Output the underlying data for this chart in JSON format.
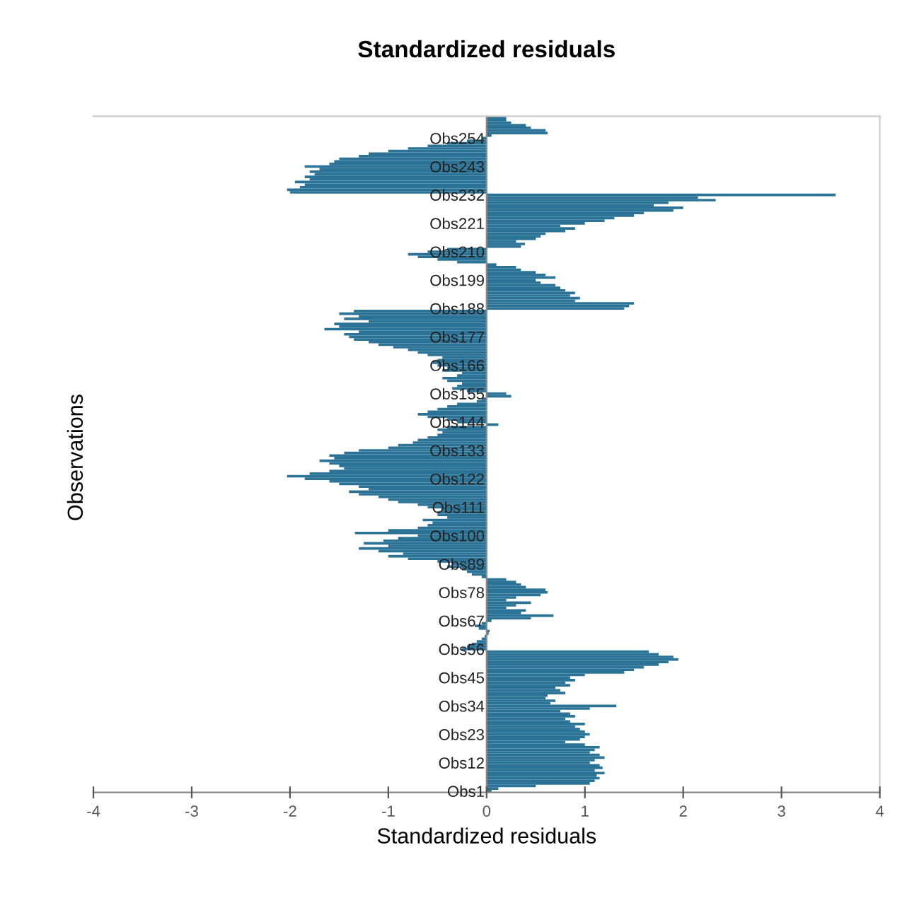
{
  "chart_data": {
    "type": "bar",
    "orientation": "horizontal",
    "title": "Standardized residuals",
    "xlabel": "Standardized residuals",
    "ylabel": "Observations",
    "categories": [
      null,
      null,
      null,
      null,
      null,
      null,
      null,
      null,
      "Obs254",
      null,
      null,
      null,
      null,
      null,
      null,
      null,
      null,
      null,
      null,
      "Obs243",
      null,
      null,
      null,
      null,
      null,
      null,
      null,
      null,
      null,
      null,
      "Obs232",
      null,
      null,
      null,
      null,
      null,
      null,
      null,
      null,
      null,
      null,
      "Obs221",
      null,
      null,
      null,
      null,
      null,
      null,
      null,
      null,
      null,
      null,
      "Obs210",
      null,
      null,
      null,
      null,
      null,
      null,
      null,
      null,
      null,
      null,
      "Obs199",
      null,
      null,
      null,
      null,
      null,
      null,
      null,
      null,
      null,
      null,
      "Obs188",
      null,
      null,
      null,
      null,
      null,
      null,
      null,
      null,
      null,
      null,
      "Obs177",
      null,
      null,
      null,
      null,
      null,
      null,
      null,
      null,
      null,
      null,
      "Obs166",
      null,
      null,
      null,
      null,
      null,
      null,
      null,
      null,
      null,
      null,
      "Obs155",
      null,
      null,
      null,
      null,
      null,
      null,
      null,
      null,
      null,
      null,
      "Obs144",
      null,
      null,
      null,
      null,
      null,
      null,
      null,
      null,
      null,
      null,
      "Obs133",
      null,
      null,
      null,
      null,
      null,
      null,
      null,
      null,
      null,
      null,
      "Obs122",
      null,
      null,
      null,
      null,
      null,
      null,
      null,
      null,
      null,
      null,
      "Obs111",
      null,
      null,
      null,
      null,
      null,
      null,
      null,
      null,
      null,
      null,
      "Obs100",
      null,
      null,
      null,
      null,
      null,
      null,
      null,
      null,
      null,
      null,
      "Obs89",
      null,
      null,
      null,
      null,
      null,
      null,
      null,
      null,
      null,
      null,
      "Obs78",
      null,
      null,
      null,
      null,
      null,
      null,
      null,
      null,
      null,
      null,
      "Obs67",
      null,
      null,
      null,
      null,
      null,
      null,
      null,
      null,
      null,
      null,
      "Obs56",
      null,
      null,
      null,
      null,
      null,
      null,
      null,
      null,
      null,
      null,
      "Obs45",
      null,
      null,
      null,
      null,
      null,
      null,
      null,
      null,
      null,
      null,
      "Obs34",
      null,
      null,
      null,
      null,
      null,
      null,
      null,
      null,
      null,
      null,
      "Obs23",
      null,
      null,
      null,
      null,
      null,
      null,
      null,
      null,
      null,
      null,
      "Obs12",
      null,
      null,
      null,
      null,
      null,
      null,
      null,
      null,
      null,
      null,
      "Obs1"
    ],
    "values": [
      0.2,
      0.2,
      0.25,
      0.4,
      0.45,
      0.6,
      0.62,
      0.05,
      -0.05,
      -0.2,
      -0.4,
      -0.6,
      -0.8,
      -1.0,
      -1.2,
      -1.3,
      -1.5,
      -1.55,
      -1.6,
      -1.85,
      -1.7,
      -1.8,
      -1.75,
      -1.85,
      -1.8,
      -1.95,
      -1.85,
      -1.9,
      -2.03,
      -2.0,
      3.55,
      2.15,
      2.33,
      1.85,
      1.7,
      2.0,
      1.9,
      1.6,
      1.5,
      1.3,
      1.2,
      1.0,
      0.75,
      0.9,
      0.8,
      0.6,
      0.55,
      0.5,
      0.3,
      0.39,
      0.35,
      -0.4,
      -0.6,
      -0.8,
      -0.7,
      -0.5,
      -0.3,
      0.1,
      0.3,
      0.35,
      0.5,
      0.6,
      0.7,
      0.5,
      0.55,
      0.7,
      0.75,
      0.8,
      0.9,
      0.85,
      0.95,
      0.9,
      1.5,
      1.45,
      1.4,
      -1.35,
      -1.5,
      -1.3,
      -1.45,
      -1.2,
      -1.55,
      -1.5,
      -1.65,
      -1.3,
      -1.45,
      -1.4,
      -1.35,
      -1.2,
      -1.1,
      -0.95,
      -0.8,
      -0.7,
      -0.6,
      -0.45,
      -0.5,
      -0.55,
      -0.5,
      -0.4,
      -0.45,
      -0.25,
      -0.3,
      -0.45,
      -0.4,
      -0.25,
      -0.3,
      -0.35,
      -0.2,
      0.2,
      0.25,
      -0.05,
      -0.1,
      -0.3,
      -0.4,
      -0.5,
      -0.6,
      -0.7,
      -0.6,
      -0.4,
      -0.3,
      0.12,
      -0.4,
      -0.5,
      -0.45,
      -0.5,
      -0.6,
      -0.7,
      -0.75,
      -0.9,
      -1.0,
      -1.3,
      -1.45,
      -1.6,
      -1.55,
      -1.7,
      -1.6,
      -1.5,
      -1.45,
      -1.6,
      -1.8,
      -2.03,
      -1.85,
      -1.6,
      -1.5,
      -1.3,
      -1.2,
      -1.4,
      -1.3,
      -1.1,
      -1.0,
      -0.9,
      -0.7,
      -0.6,
      -0.45,
      -0.5,
      -0.5,
      -0.4,
      -0.65,
      -0.55,
      -0.6,
      -0.7,
      -1.0,
      -1.34,
      -0.7,
      -0.9,
      -1.05,
      -1.25,
      -1.0,
      -1.3,
      -1.1,
      -0.85,
      -1.0,
      -0.8,
      -0.5,
      -0.35,
      -0.4,
      -0.25,
      -0.2,
      -0.15,
      -0.05,
      0.2,
      0.3,
      0.35,
      0.4,
      0.6,
      0.62,
      0.55,
      0.3,
      0.2,
      0.45,
      0.3,
      0.2,
      0.4,
      0.35,
      0.68,
      0.45,
      0.05,
      -0.05,
      -0.12,
      -0.08,
      0.03,
      0.02,
      -0.02,
      -0.05,
      -0.1,
      -0.15,
      -0.2,
      -0.25,
      1.65,
      1.75,
      1.9,
      1.95,
      1.85,
      1.75,
      1.6,
      1.5,
      1.4,
      1.0,
      0.85,
      0.9,
      0.8,
      0.85,
      0.7,
      0.75,
      0.8,
      0.62,
      0.6,
      0.7,
      0.65,
      1.32,
      1.05,
      0.75,
      0.85,
      0.9,
      0.8,
      0.85,
      1.0,
      0.9,
      0.95,
      1.0,
      1.05,
      1.0,
      0.95,
      0.8,
      1.0,
      1.15,
      1.1,
      1.05,
      1.15,
      1.2,
      1.1,
      1.05,
      1.15,
      1.18,
      1.1,
      1.2,
      1.12,
      1.15,
      1.1,
      1.05,
      0.5,
      0.12,
      0.05
    ],
    "color": "#2b7396",
    "xlim": [
      -4,
      4
    ],
    "xticks": [
      -4,
      -3,
      -2,
      -1,
      0,
      1,
      2,
      3,
      4
    ],
    "grid": false,
    "legend": false
  }
}
